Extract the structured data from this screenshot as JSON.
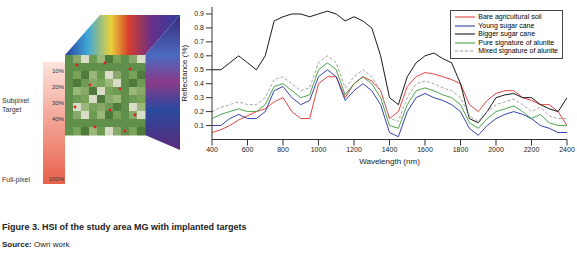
{
  "chart_data": {
    "type": "line",
    "x_label": "Wavelength (nm)",
    "y_label": "Reflectance (%)",
    "xlim": [
      400,
      2400
    ],
    "xticks": [
      400,
      600,
      800,
      1000,
      1200,
      1400,
      1600,
      1800,
      2000,
      2200,
      2400
    ],
    "ylim": [
      0,
      0.95
    ],
    "yticks": [
      0.1,
      0.2,
      0.3,
      0.4,
      0.5,
      0.6,
      0.7,
      0.8,
      0.9
    ],
    "legend": "upper right",
    "x": [
      400,
      450,
      500,
      550,
      600,
      650,
      700,
      750,
      800,
      850,
      900,
      950,
      1000,
      1050,
      1100,
      1150,
      1200,
      1250,
      1300,
      1350,
      1400,
      1450,
      1500,
      1550,
      1600,
      1650,
      1700,
      1750,
      1800,
      1850,
      1900,
      1950,
      2000,
      2050,
      2100,
      2150,
      2200,
      2250,
      2300,
      2350,
      2400
    ],
    "series": [
      {
        "name": "Bare agricultural soil",
        "color": "#e03030",
        "line_style": "solid",
        "values": [
          0.05,
          0.07,
          0.1,
          0.14,
          0.17,
          0.2,
          0.22,
          0.27,
          0.3,
          0.2,
          0.15,
          0.15,
          0.4,
          0.45,
          0.45,
          0.3,
          0.4,
          0.45,
          0.42,
          0.35,
          0.15,
          0.2,
          0.38,
          0.45,
          0.48,
          0.47,
          0.45,
          0.43,
          0.4,
          0.25,
          0.2,
          0.28,
          0.33,
          0.35,
          0.35,
          0.3,
          0.28,
          0.25,
          0.25,
          0.2,
          0.1
        ]
      },
      {
        "name": "Young sugar cane",
        "color": "#1f2f9f",
        "line_style": "solid",
        "values": [
          0.1,
          0.1,
          0.15,
          0.18,
          0.15,
          0.15,
          0.2,
          0.35,
          0.38,
          0.3,
          0.25,
          0.28,
          0.45,
          0.5,
          0.45,
          0.28,
          0.35,
          0.4,
          0.35,
          0.25,
          0.05,
          0.02,
          0.2,
          0.3,
          0.33,
          0.3,
          0.28,
          0.25,
          0.2,
          0.08,
          0.03,
          0.1,
          0.15,
          0.18,
          0.2,
          0.18,
          0.15,
          0.1,
          0.08,
          0.05,
          0.05
        ]
      },
      {
        "name": "Bigger sugar cane",
        "color": "#000000",
        "line_style": "solid",
        "values": [
          0.5,
          0.5,
          0.55,
          0.6,
          0.55,
          0.5,
          0.6,
          0.85,
          0.88,
          0.9,
          0.9,
          0.88,
          0.9,
          0.92,
          0.9,
          0.85,
          0.88,
          0.85,
          0.8,
          0.6,
          0.3,
          0.25,
          0.45,
          0.55,
          0.6,
          0.62,
          0.58,
          0.55,
          0.4,
          0.15,
          0.12,
          0.2,
          0.3,
          0.32,
          0.33,
          0.3,
          0.3,
          0.25,
          0.22,
          0.2,
          0.3
        ]
      },
      {
        "name": "Pure signature of alunite",
        "color": "#3a9a3a",
        "line_style": "solid",
        "values": [
          0.15,
          0.18,
          0.2,
          0.22,
          0.2,
          0.2,
          0.25,
          0.38,
          0.4,
          0.35,
          0.3,
          0.32,
          0.5,
          0.55,
          0.5,
          0.32,
          0.4,
          0.45,
          0.4,
          0.3,
          0.1,
          0.08,
          0.25,
          0.35,
          0.37,
          0.35,
          0.32,
          0.3,
          0.25,
          0.12,
          0.08,
          0.15,
          0.2,
          0.22,
          0.24,
          0.2,
          0.15,
          0.18,
          0.12,
          0.1,
          0.1
        ]
      },
      {
        "name": "Mixed signature of alunite",
        "color": "#9a9a9a",
        "line_style": "dashed",
        "values": [
          0.2,
          0.23,
          0.25,
          0.27,
          0.25,
          0.25,
          0.3,
          0.43,
          0.45,
          0.4,
          0.35,
          0.37,
          0.55,
          0.6,
          0.55,
          0.37,
          0.45,
          0.5,
          0.45,
          0.35,
          0.15,
          0.13,
          0.3,
          0.4,
          0.42,
          0.4,
          0.37,
          0.35,
          0.3,
          0.17,
          0.13,
          0.2,
          0.25,
          0.27,
          0.29,
          0.25,
          0.2,
          0.23,
          0.17,
          0.15,
          0.15
        ]
      }
    ]
  },
  "figure": {
    "caption": "Figure 3. HSI of the study area MG with implanted targets",
    "source_label": "Source:",
    "source": "Own work",
    "scale_labels": [
      "10%",
      "20%",
      "30%",
      "40%",
      "100%"
    ],
    "subpixel_label": "Subpixel Target",
    "fullpixel_label": "Full-pixel"
  }
}
